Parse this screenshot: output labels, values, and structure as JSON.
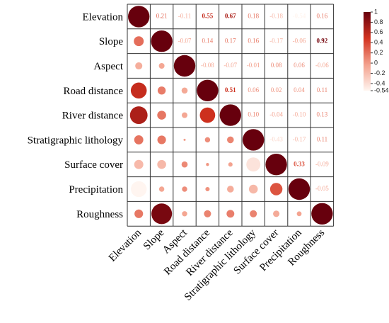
{
  "chart_data": {
    "type": "correlogram",
    "variables": [
      "Elevation",
      "Slope",
      "Aspect",
      "Road distance",
      "River distance",
      "Stratigraphic lithology",
      "Surface cover",
      "Precipitation",
      "Roughness"
    ],
    "matrix": [
      [
        1,
        0.21,
        -0.11,
        0.55,
        0.67,
        0.18,
        -0.18,
        -0.54,
        0.16
      ],
      [
        null,
        1,
        -0.07,
        0.14,
        0.17,
        0.16,
        -0.17,
        -0.06,
        0.92
      ],
      [
        null,
        null,
        1,
        -0.08,
        -0.07,
        -0.01,
        0.08,
        0.06,
        -0.06
      ],
      [
        null,
        null,
        null,
        1,
        0.51,
        0.06,
        0.02,
        0.04,
        0.11
      ],
      [
        null,
        null,
        null,
        null,
        1,
        0.1,
        -0.04,
        -0.1,
        0.13
      ],
      [
        null,
        null,
        null,
        null,
        null,
        1,
        -0.43,
        -0.17,
        0.11
      ],
      [
        null,
        null,
        null,
        null,
        null,
        null,
        1,
        0.33,
        -0.09
      ],
      [
        null,
        null,
        null,
        null,
        null,
        null,
        null,
        1,
        -0.05
      ],
      [
        null,
        null,
        null,
        null,
        null,
        null,
        null,
        null,
        1
      ]
    ],
    "value_labels": [
      [
        null,
        "0.21",
        "-0.11",
        "0.55",
        "0.67",
        "0.18",
        "-0.18",
        "-0.54",
        "0.16"
      ],
      [
        null,
        null,
        "-0.07",
        "0.14",
        "0.17",
        "0.16",
        "-0.17",
        "-0.06",
        "0.92"
      ],
      [
        null,
        null,
        null,
        "-0.08",
        "-0.07",
        "-0.01",
        "0.08",
        "0.06",
        "-0.06"
      ],
      [
        null,
        null,
        null,
        null,
        "0.51",
        "0.06",
        "0.02",
        "0.04",
        "0.11"
      ],
      [
        null,
        null,
        null,
        null,
        null,
        "0.10",
        "-0.04",
        "-0.10",
        "0.13"
      ],
      [
        null,
        null,
        null,
        null,
        null,
        null,
        "-0.43",
        "-0.17",
        "0.11"
      ],
      [
        null,
        null,
        null,
        null,
        null,
        null,
        null,
        "0.33",
        "-0.09"
      ],
      [
        null,
        null,
        null,
        null,
        null,
        null,
        null,
        null,
        "-0.05"
      ],
      [
        null,
        null,
        null,
        null,
        null,
        null,
        null,
        null,
        null
      ]
    ],
    "clim": [
      -0.54,
      1
    ],
    "cticks": [
      1,
      0.8,
      0.6,
      0.4,
      0.2,
      0,
      -0.2,
      -0.4,
      -0.54
    ],
    "colors": [
      "#fff5f0",
      "#f3a08c",
      "#d2321f",
      "#67000d"
    ]
  }
}
